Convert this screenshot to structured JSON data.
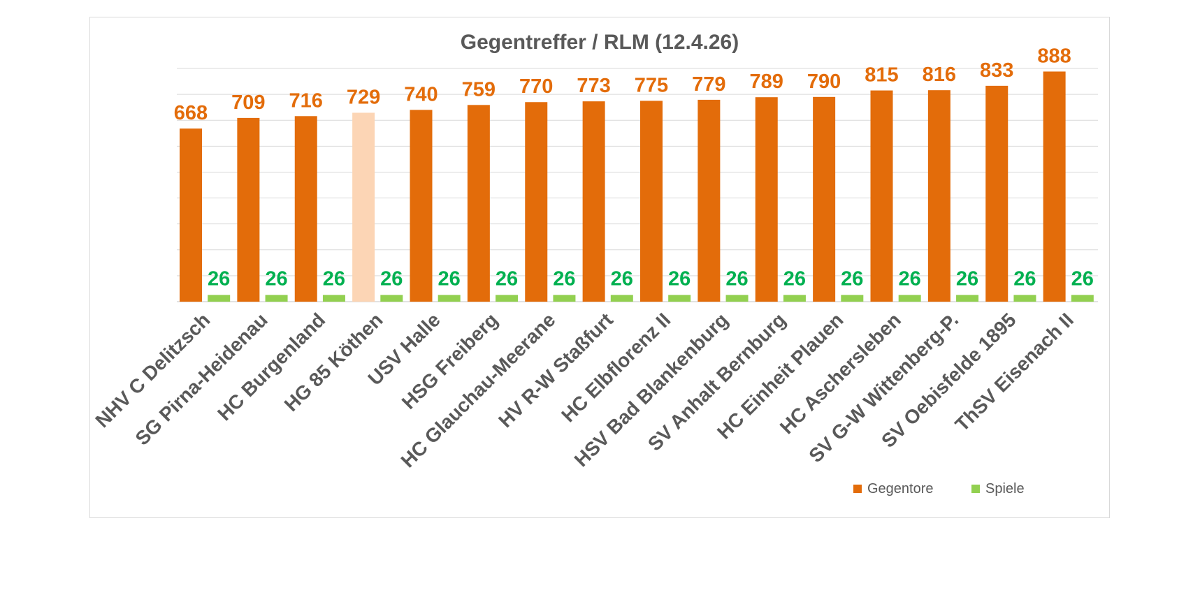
{
  "chart_data": {
    "type": "bar",
    "title": "Gegentreffer / RLM (12.4.26)",
    "xlabel": "",
    "ylabel": "",
    "categories": [
      "NHV C Delitzsch",
      "SG Pirna-Heidenau",
      "HC Burgenland",
      "HG 85 Köthen",
      "USV Halle",
      "HSG Freiberg",
      "HC Glauchau-Meerane",
      "HV R-W Staßfurt",
      "HC Elbflorenz II",
      "HSV Bad Blankenburg",
      "SV Anhalt Bernburg",
      "HC Einheit Plauen",
      "HC Aschersleben",
      "SV G-W Wittenberg-P.",
      "SV Oebisfelde 1895",
      "ThSV Eisenach II"
    ],
    "series": [
      {
        "name": "Gegentore",
        "color": "#e36c0a",
        "values": [
          668,
          709,
          716,
          729,
          740,
          759,
          770,
          773,
          775,
          779,
          789,
          790,
          815,
          816,
          833,
          888
        ],
        "highlight": {
          "index": 3,
          "color": "#fcd5b5"
        }
      },
      {
        "name": "Spiele",
        "color": "#92d050",
        "label_color": "#00b050",
        "values": [
          26,
          26,
          26,
          26,
          26,
          26,
          26,
          26,
          26,
          26,
          26,
          26,
          26,
          26,
          26,
          26
        ]
      }
    ],
    "ylim": [
      0,
      900
    ],
    "grid": true,
    "data_labels": true,
    "legend_position": "bottom-right",
    "value_label_color": "#e36c0a",
    "axis_color": "#d9d9d9",
    "grid_color": "#d9d9d9"
  }
}
